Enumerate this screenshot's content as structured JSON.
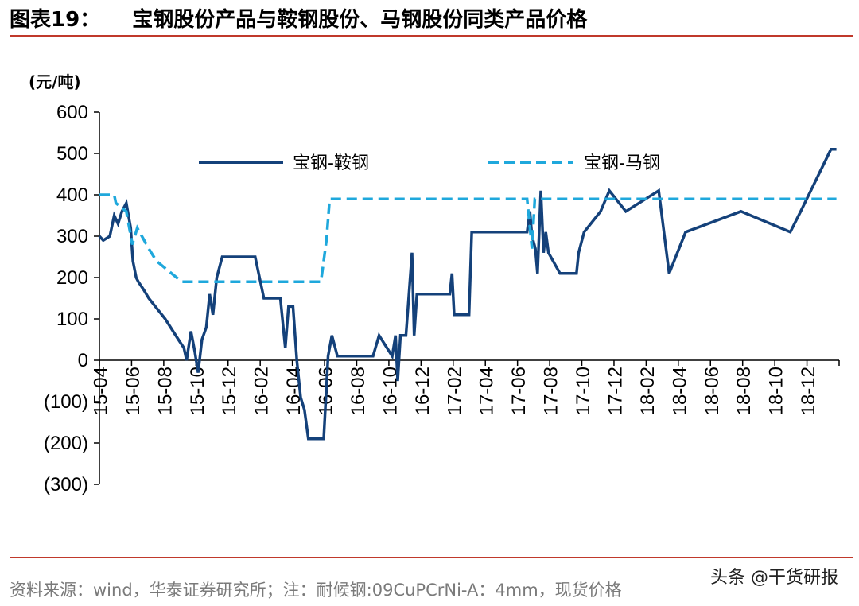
{
  "header": {
    "figure_no": "图表19：",
    "title": "宝钢股份产品与鞍钢股份、马钢股份同类产品价格"
  },
  "footer": {
    "source": "资料来源：wind，华泰证券研究所；注：耐候钢:09CuPCrNi-A：4mm，现货价格",
    "watermark": "头条 @干货研报"
  },
  "colors": {
    "accent_rule": "#c0392b",
    "series_1": "#14417a",
    "series_2": "#1fa8dc"
  },
  "chart_data": {
    "type": "line",
    "ylabel": "(元/吨)",
    "ylim": [
      -300,
      600
    ],
    "yticks": [
      600,
      500,
      400,
      300,
      200,
      100,
      0,
      -100,
      -200,
      -300
    ],
    "ytick_labels": [
      "600",
      "500",
      "400",
      "300",
      "200",
      "100",
      "0",
      "(100)",
      "(200)",
      "(300)"
    ],
    "xlim": [
      "2015-04",
      "2018-12"
    ],
    "xtick_labels": [
      "15-04",
      "15-06",
      "15-08",
      "15-10",
      "15-12",
      "16-02",
      "16-04",
      "16-06",
      "16-08",
      "16-10",
      "16-12",
      "17-02",
      "17-04",
      "17-06",
      "17-08",
      "17-10",
      "17-12",
      "18-02",
      "18-04",
      "18-06",
      "18-08",
      "18-10",
      "18-12"
    ],
    "legend_position": "top",
    "grid": false,
    "series": [
      {
        "name": "宝钢-鞍钢",
        "style": "solid",
        "points": [
          [
            "2015-04",
            300
          ],
          [
            "2015-04-08",
            290
          ],
          [
            "2015-04-20",
            300
          ],
          [
            "2015-04-28",
            350
          ],
          [
            "2015-05-05",
            330
          ],
          [
            "2015-05-12",
            360
          ],
          [
            "2015-05-20",
            380
          ],
          [
            "2015-05-28",
            320
          ],
          [
            "2015-06-02",
            240
          ],
          [
            "2015-06-08",
            200
          ],
          [
            "2015-06-12",
            190
          ],
          [
            "2015-06-22",
            170
          ],
          [
            "2015-07-01",
            150
          ],
          [
            "2015-08-01",
            100
          ],
          [
            "2015-08-25",
            50
          ],
          [
            "2015-09-05",
            30
          ],
          [
            "2015-09-10",
            0
          ],
          [
            "2015-09-18",
            70
          ],
          [
            "2015-09-25",
            20
          ],
          [
            "2015-10-01",
            -30
          ],
          [
            "2015-10-08",
            50
          ],
          [
            "2015-10-16",
            80
          ],
          [
            "2015-10-22",
            160
          ],
          [
            "2015-10-28",
            110
          ],
          [
            "2015-11-05",
            200
          ],
          [
            "2015-11-15",
            250
          ],
          [
            "2016-01-15",
            250
          ],
          [
            "2016-02-01",
            150
          ],
          [
            "2016-03-01",
            150
          ],
          [
            "2016-03-10",
            30
          ],
          [
            "2016-03-16",
            130
          ],
          [
            "2016-03-24",
            130
          ],
          [
            "2016-04-01",
            0
          ],
          [
            "2016-04-08",
            -90
          ],
          [
            "2016-04-15",
            -120
          ],
          [
            "2016-04-22",
            -190
          ],
          [
            "2016-05-20",
            -190
          ],
          [
            "2016-05-28",
            10
          ],
          [
            "2016-06-05",
            60
          ],
          [
            "2016-06-15",
            10
          ],
          [
            "2016-08-20",
            10
          ],
          [
            "2016-09-01",
            60
          ],
          [
            "2016-09-25",
            10
          ],
          [
            "2016-10-01",
            60
          ],
          [
            "2016-10-05",
            -50
          ],
          [
            "2016-10-10",
            60
          ],
          [
            "2016-10-20",
            60
          ],
          [
            "2016-11-01",
            260
          ],
          [
            "2016-11-05",
            60
          ],
          [
            "2016-11-10",
            160
          ],
          [
            "2017-01-10",
            160
          ],
          [
            "2017-01-14",
            210
          ],
          [
            "2017-01-18",
            110
          ],
          [
            "2017-02-15",
            110
          ],
          [
            "2017-02-20",
            310
          ],
          [
            "2017-06-01",
            310
          ],
          [
            "2017-06-06",
            360
          ],
          [
            "2017-06-10",
            300
          ],
          [
            "2017-06-16",
            270
          ],
          [
            "2017-06-20",
            210
          ],
          [
            "2017-06-26",
            410
          ],
          [
            "2017-07-01",
            260
          ],
          [
            "2017-07-05",
            310
          ],
          [
            "2017-07-10",
            260
          ],
          [
            "2017-08-01",
            210
          ],
          [
            "2017-09-01",
            210
          ],
          [
            "2017-09-05",
            260
          ],
          [
            "2017-09-15",
            310
          ],
          [
            "2017-10-15",
            360
          ],
          [
            "2017-11-01",
            410
          ],
          [
            "2017-12-01",
            360
          ],
          [
            "2018-02-01",
            410
          ],
          [
            "2018-02-20",
            210
          ],
          [
            "2018-03-20",
            310
          ],
          [
            "2018-07-01",
            360
          ],
          [
            "2018-10-01",
            310
          ],
          [
            "2018-10-20",
            360
          ],
          [
            "2018-12-15",
            510
          ],
          [
            "2018-12-25",
            510
          ]
        ]
      },
      {
        "name": "宝钢-马钢",
        "style": "dashed",
        "points": [
          [
            "2015-04",
            400
          ],
          [
            "2015-04-28",
            400
          ],
          [
            "2015-05-01",
            380
          ],
          [
            "2015-05-20",
            360
          ],
          [
            "2015-06-01",
            280
          ],
          [
            "2015-06-10",
            320
          ],
          [
            "2015-07-01",
            270
          ],
          [
            "2015-07-15",
            240
          ],
          [
            "2015-09-01",
            190
          ],
          [
            "2016-05-15",
            190
          ],
          [
            "2016-05-25",
            290
          ],
          [
            "2016-06-01",
            390
          ],
          [
            "2017-06-01",
            390
          ],
          [
            "2017-06-10",
            270
          ],
          [
            "2017-06-15",
            390
          ],
          [
            "2018-12-25",
            390
          ]
        ]
      }
    ]
  }
}
